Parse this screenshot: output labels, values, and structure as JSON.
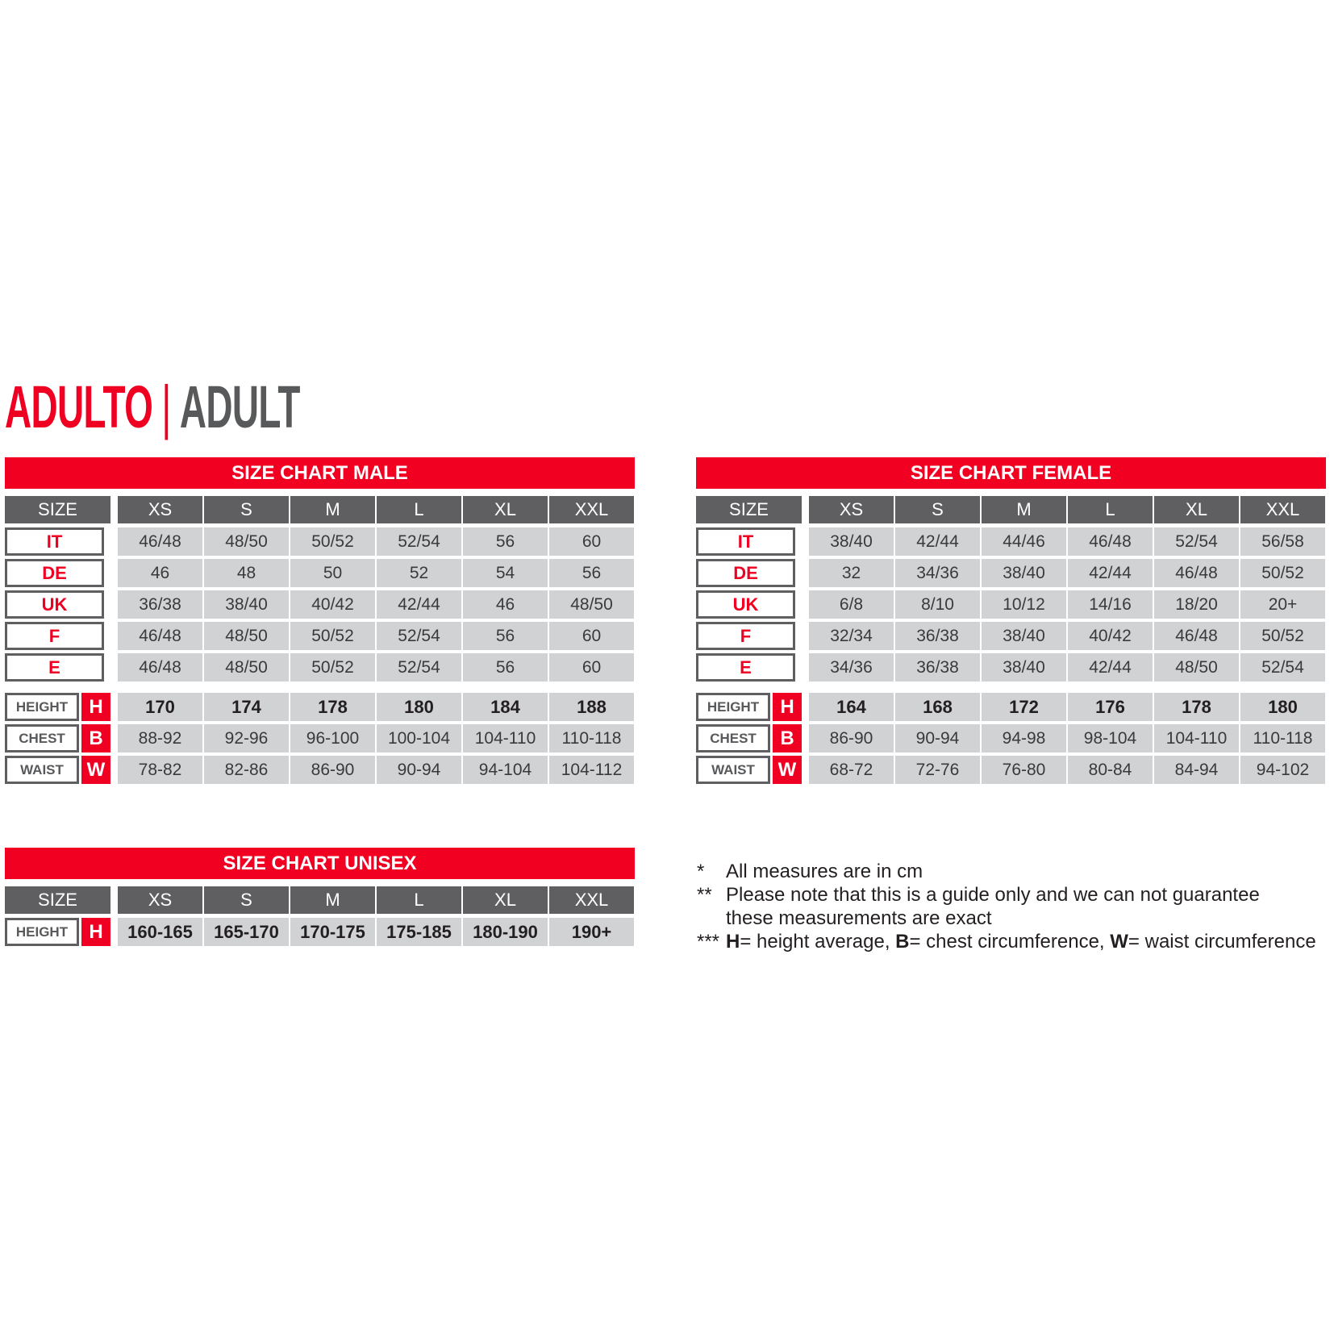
{
  "title": {
    "italian": "ADULTO",
    "separator": "|",
    "english": "ADULT"
  },
  "colors": {
    "red": "#ef0022",
    "dark_gray": "#5f5f61",
    "light_gray": "#d1d2d4"
  },
  "charts": [
    {
      "id": "male",
      "caption": "SIZE CHART MALE",
      "size_label": "SIZE",
      "sizes": [
        "XS",
        "S",
        "M",
        "L",
        "XL",
        "XXL"
      ],
      "conversions": [
        {
          "label": "IT",
          "values": [
            "46/48",
            "48/50",
            "50/52",
            "52/54",
            "56",
            "60"
          ]
        },
        {
          "label": "DE",
          "values": [
            "46",
            "48",
            "50",
            "52",
            "54",
            "56"
          ]
        },
        {
          "label": "UK",
          "values": [
            "36/38",
            "38/40",
            "40/42",
            "42/44",
            "46",
            "48/50"
          ]
        },
        {
          "label": "F",
          "values": [
            "46/48",
            "48/50",
            "50/52",
            "52/54",
            "56",
            "60"
          ]
        },
        {
          "label": "E",
          "values": [
            "46/48",
            "48/50",
            "50/52",
            "52/54",
            "56",
            "60"
          ]
        }
      ],
      "measures": [
        {
          "label": "HEIGHT",
          "letter": "H",
          "bold": true,
          "values": [
            "170",
            "174",
            "178",
            "180",
            "184",
            "188"
          ]
        },
        {
          "label": "CHEST",
          "letter": "B",
          "values": [
            "88-92",
            "92-96",
            "96-100",
            "100-104",
            "104-110",
            "110-118"
          ]
        },
        {
          "label": "WAIST",
          "letter": "W",
          "values": [
            "78-82",
            "82-86",
            "86-90",
            "90-94",
            "94-104",
            "104-112"
          ]
        }
      ]
    },
    {
      "id": "female",
      "caption": "SIZE CHART FEMALE",
      "size_label": "SIZE",
      "sizes": [
        "XS",
        "S",
        "M",
        "L",
        "XL",
        "XXL"
      ],
      "conversions": [
        {
          "label": "IT",
          "values": [
            "38/40",
            "42/44",
            "44/46",
            "46/48",
            "52/54",
            "56/58"
          ]
        },
        {
          "label": "DE",
          "values": [
            "32",
            "34/36",
            "38/40",
            "42/44",
            "46/48",
            "50/52"
          ]
        },
        {
          "label": "UK",
          "values": [
            "6/8",
            "8/10",
            "10/12",
            "14/16",
            "18/20",
            "20+"
          ]
        },
        {
          "label": "F",
          "values": [
            "32/34",
            "36/38",
            "38/40",
            "40/42",
            "46/48",
            "50/52"
          ]
        },
        {
          "label": "E",
          "values": [
            "34/36",
            "36/38",
            "38/40",
            "42/44",
            "48/50",
            "52/54"
          ]
        }
      ],
      "measures": [
        {
          "label": "HEIGHT",
          "letter": "H",
          "bold": true,
          "values": [
            "164",
            "168",
            "172",
            "176",
            "178",
            "180"
          ]
        },
        {
          "label": "CHEST",
          "letter": "B",
          "values": [
            "86-90",
            "90-94",
            "94-98",
            "98-104",
            "104-110",
            "110-118"
          ]
        },
        {
          "label": "WAIST",
          "letter": "W",
          "values": [
            "68-72",
            "72-76",
            "76-80",
            "80-84",
            "84-94",
            "94-102"
          ]
        }
      ]
    },
    {
      "id": "unisex",
      "caption": "SIZE CHART UNISEX",
      "size_label": "SIZE",
      "sizes": [
        "XS",
        "S",
        "M",
        "L",
        "XL",
        "XXL"
      ],
      "conversions": [],
      "measures": [
        {
          "label": "HEIGHT",
          "letter": "H",
          "bold": true,
          "values": [
            "160-165",
            "165-170",
            "170-175",
            "175-185",
            "180-190",
            "190+"
          ]
        }
      ]
    }
  ],
  "notes": [
    {
      "marker": "*",
      "lines": [
        "All measures are in cm"
      ]
    },
    {
      "marker": "**",
      "lines": [
        "Please note that this is a guide only and we can not guarantee",
        "these measurements are exact"
      ]
    },
    {
      "marker": "***",
      "parts": [
        {
          "b": "H",
          "t": "= height average, "
        },
        {
          "b": "B",
          "t": "= chest circumference, "
        },
        {
          "b": "W",
          "t": "= waist circumference"
        }
      ]
    }
  ]
}
